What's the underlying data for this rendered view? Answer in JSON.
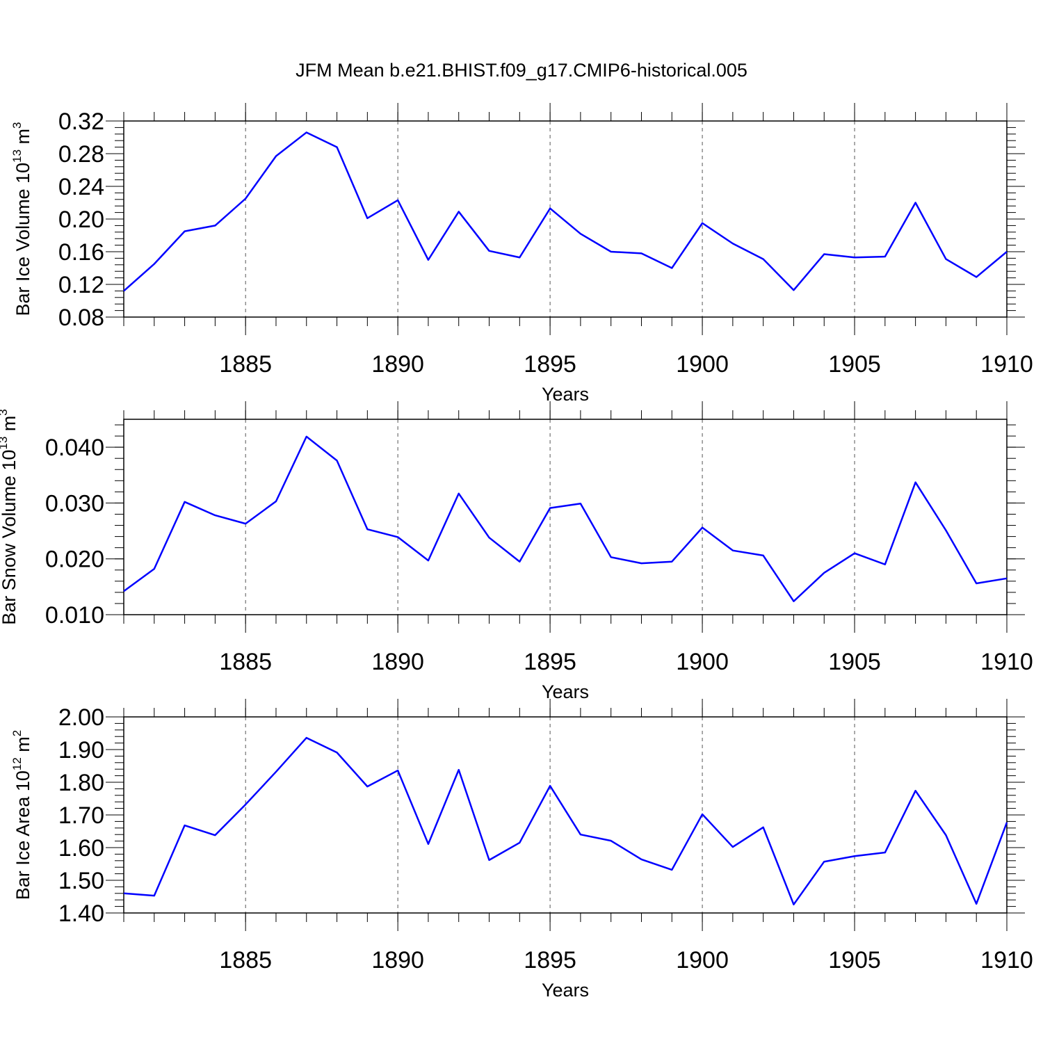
{
  "title": "JFM Mean b.e21.BHIST.f09_g17.CMIP6-historical.005",
  "chart_data": [
    {
      "type": "line",
      "xlabel": "Years",
      "ylabel": "Bar Ice Volume 10",
      "ylabel_exp": "13",
      "ylabel_unit": " m",
      "ylabel_unit_exp": "3",
      "x": [
        1881,
        1882,
        1883,
        1884,
        1885,
        1886,
        1887,
        1888,
        1889,
        1890,
        1891,
        1892,
        1893,
        1894,
        1895,
        1896,
        1897,
        1898,
        1899,
        1900,
        1901,
        1902,
        1903,
        1904,
        1905,
        1906,
        1907,
        1908,
        1909,
        1910
      ],
      "values": [
        0.112,
        0.145,
        0.185,
        0.192,
        0.225,
        0.277,
        0.306,
        0.288,
        0.201,
        0.223,
        0.15,
        0.209,
        0.161,
        0.153,
        0.213,
        0.182,
        0.16,
        0.158,
        0.14,
        0.195,
        0.17,
        0.151,
        0.113,
        0.157,
        0.153,
        0.154,
        0.22,
        0.151,
        0.129,
        0.16
      ],
      "color": "#0000ff",
      "xlim": [
        1881,
        1910
      ],
      "xticks": [
        1885,
        1890,
        1895,
        1900,
        1905,
        1910
      ],
      "ylim": [
        0.08,
        0.32
      ],
      "yticks": [
        0.08,
        0.12,
        0.16,
        {
          "value": 0.2,
          "label": "0.20"
        },
        0.24,
        0.28,
        0.32
      ],
      "grid": true
    },
    {
      "type": "line",
      "xlabel": "Years",
      "ylabel": "Bar Snow Volume 10",
      "ylabel_exp": "13",
      "ylabel_unit": " m",
      "ylabel_unit_exp": "3",
      "x": [
        1881,
        1882,
        1883,
        1884,
        1885,
        1886,
        1887,
        1888,
        1889,
        1890,
        1891,
        1892,
        1893,
        1894,
        1895,
        1896,
        1897,
        1898,
        1899,
        1900,
        1901,
        1902,
        1903,
        1904,
        1905,
        1906,
        1907,
        1908,
        1909,
        1910
      ],
      "values": [
        0.0142,
        0.0182,
        0.0302,
        0.0278,
        0.0263,
        0.0303,
        0.0419,
        0.0376,
        0.0253,
        0.0239,
        0.0197,
        0.0317,
        0.0238,
        0.0195,
        0.0291,
        0.0299,
        0.0203,
        0.0192,
        0.0195,
        0.0256,
        0.0215,
        0.0206,
        0.0124,
        0.0175,
        0.021,
        0.019,
        0.0337,
        0.0251,
        0.0156,
        0.0165
      ],
      "color": "#0000ff",
      "xlim": [
        1881,
        1910
      ],
      "xticks": [
        1885,
        1890,
        1895,
        1900,
        1905,
        1910
      ],
      "ylim": [
        0.01,
        0.045
      ],
      "yticks": [
        {
          "value": 0.01,
          "label": "0.010"
        },
        {
          "value": 0.02,
          "label": "0.020"
        },
        {
          "value": 0.03,
          "label": "0.030"
        },
        {
          "value": 0.04,
          "label": "0.040"
        }
      ],
      "grid": true
    },
    {
      "type": "line",
      "xlabel": "Years",
      "ylabel": "Bar Ice Area 10",
      "ylabel_exp": "12",
      "ylabel_unit": " m",
      "ylabel_unit_exp": "2",
      "x": [
        1881,
        1882,
        1883,
        1884,
        1885,
        1886,
        1887,
        1888,
        1889,
        1890,
        1891,
        1892,
        1893,
        1894,
        1895,
        1896,
        1897,
        1898,
        1899,
        1900,
        1901,
        1902,
        1903,
        1904,
        1905,
        1906,
        1907,
        1908,
        1909,
        1910
      ],
      "values": [
        1.46,
        1.453,
        1.668,
        1.638,
        1.732,
        1.832,
        1.936,
        1.891,
        1.787,
        1.836,
        1.611,
        1.838,
        1.562,
        1.615,
        1.789,
        1.64,
        1.621,
        1.564,
        1.532,
        1.702,
        1.602,
        1.662,
        1.426,
        1.557,
        1.574,
        1.585,
        1.774,
        1.638,
        1.428,
        1.677
      ],
      "color": "#0000ff",
      "xlim": [
        1881,
        1910
      ],
      "xticks": [
        1885,
        1890,
        1895,
        1900,
        1905,
        1910
      ],
      "ylim": [
        1.4,
        2.0
      ],
      "yticks": [
        {
          "value": 1.4,
          "label": "1.40"
        },
        {
          "value": 1.5,
          "label": "1.50"
        },
        {
          "value": 1.6,
          "label": "1.60"
        },
        {
          "value": 1.7,
          "label": "1.70"
        },
        {
          "value": 1.8,
          "label": "1.80"
        },
        {
          "value": 1.9,
          "label": "1.90"
        },
        {
          "value": 2.0,
          "label": "2.00"
        }
      ],
      "grid": true
    }
  ]
}
